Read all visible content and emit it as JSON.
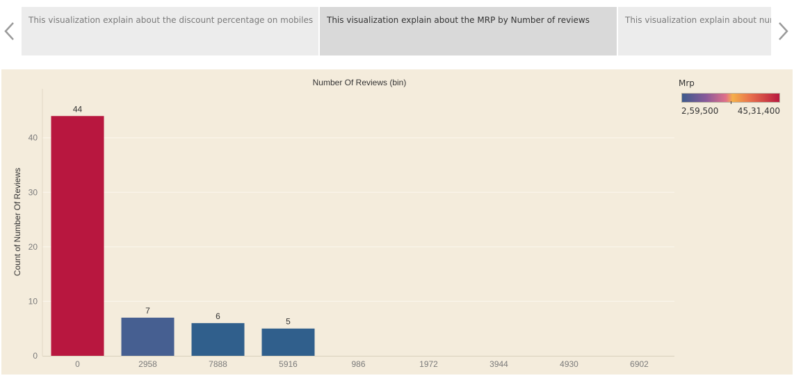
{
  "story": {
    "points": [
      {
        "label": "This visualization explain about the discount percentage on mobiles"
      },
      {
        "label": "This visualization explain about the MRP by Number of reviews"
      },
      {
        "label": "This visualization explain about numb"
      }
    ],
    "active_index": 1
  },
  "legend": {
    "title": "Mrp",
    "min_label": "2,59,500",
    "max_label": "45,31,400",
    "colors": [
      "#3d5a8c",
      "#8a5a9a",
      "#e0708a",
      "#f5b04a",
      "#e8704c",
      "#b8193f"
    ]
  },
  "chart_data": {
    "type": "bar",
    "title": "Number Of Reviews (bin)",
    "xlabel": "",
    "ylabel": "Count of Number Of Reviews",
    "categories": [
      "0",
      "2958",
      "7888",
      "5916",
      "986",
      "1972",
      "3944",
      "4930",
      "6902"
    ],
    "values": [
      44,
      7,
      6,
      5,
      0,
      0,
      0,
      0,
      0
    ],
    "data_labels": [
      "44",
      "7",
      "6",
      "5",
      "",
      "",
      "",
      "",
      ""
    ],
    "bar_colors": [
      "#b8173f",
      "#465f91",
      "#305f8c",
      "#305f8c",
      null,
      null,
      null,
      null,
      null
    ],
    "ylim": [
      0,
      49
    ],
    "yticks": [
      0,
      10,
      20,
      30,
      40
    ],
    "grid": true,
    "legend_position": "top-right"
  }
}
